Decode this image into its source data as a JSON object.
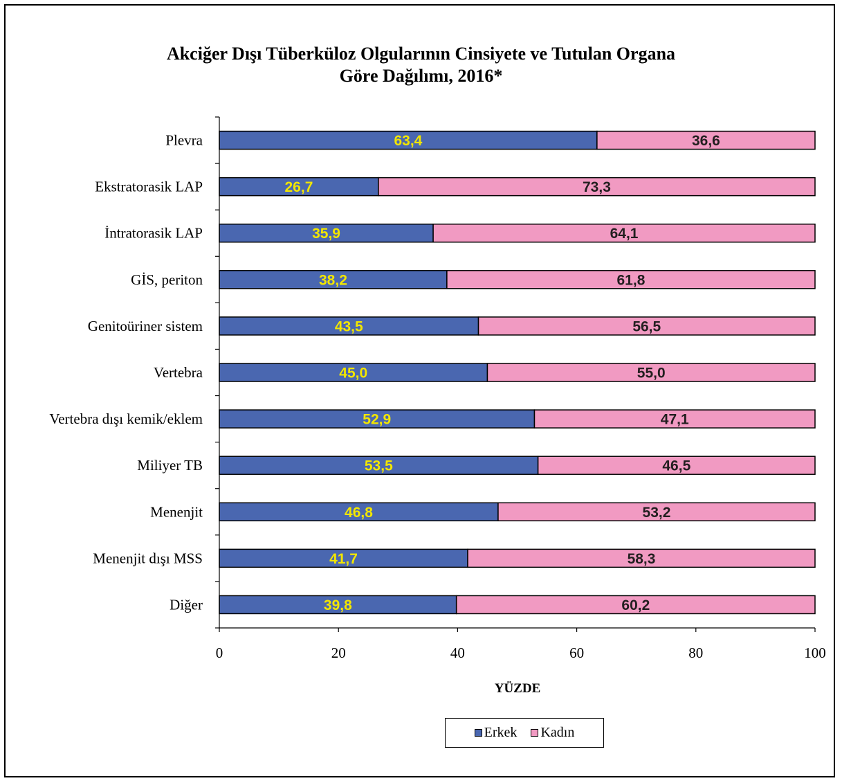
{
  "chart_data": {
    "type": "bar",
    "orientation": "horizontal",
    "stacked": true,
    "title": [
      "Akciğer Dışı Tüberküloz Olgularının Cinsiyete ve Tutulan Organa",
      "Göre Dağılımı, 2016*"
    ],
    "xlabel": "YÜZDE",
    "ylabel": "",
    "xlim": [
      0,
      100
    ],
    "xticks": [
      "0",
      "20",
      "40",
      "60",
      "80",
      "100"
    ],
    "grid": false,
    "legend_position": "bottom",
    "categories": [
      "Plevra",
      "Ekstratorasik LAP",
      "İntratorasik LAP",
      "GİS, periton",
      "Genitoüriner sistem",
      "Vertebra",
      "Vertebra dışı kemik/eklem",
      "Miliyer TB",
      "Menenjit",
      "Menenjit dışı MSS",
      "Diğer"
    ],
    "series": [
      {
        "name": "Erkek",
        "color": "#4a67b0",
        "label_color": "#f2e600",
        "values": [
          63.4,
          26.7,
          35.9,
          38.2,
          43.5,
          45.0,
          52.9,
          53.5,
          46.8,
          41.7,
          39.8
        ],
        "labels": [
          "63,4",
          "26,7",
          "35,9",
          "38,2",
          "43,5",
          "45,0",
          "52,9",
          "53,5",
          "46,8",
          "41,7",
          "39,8"
        ]
      },
      {
        "name": "Kadın",
        "color": "#f19ac2",
        "label_color": "#231f20",
        "values": [
          36.6,
          73.3,
          64.1,
          61.8,
          56.5,
          55.0,
          47.1,
          46.5,
          53.2,
          58.3,
          60.2
        ],
        "labels": [
          "36,6",
          "73,3",
          "64,1",
          "61,8",
          "56,5",
          "55,0",
          "47,1",
          "46,5",
          "53,2",
          "58,3",
          "60,2"
        ]
      }
    ]
  }
}
